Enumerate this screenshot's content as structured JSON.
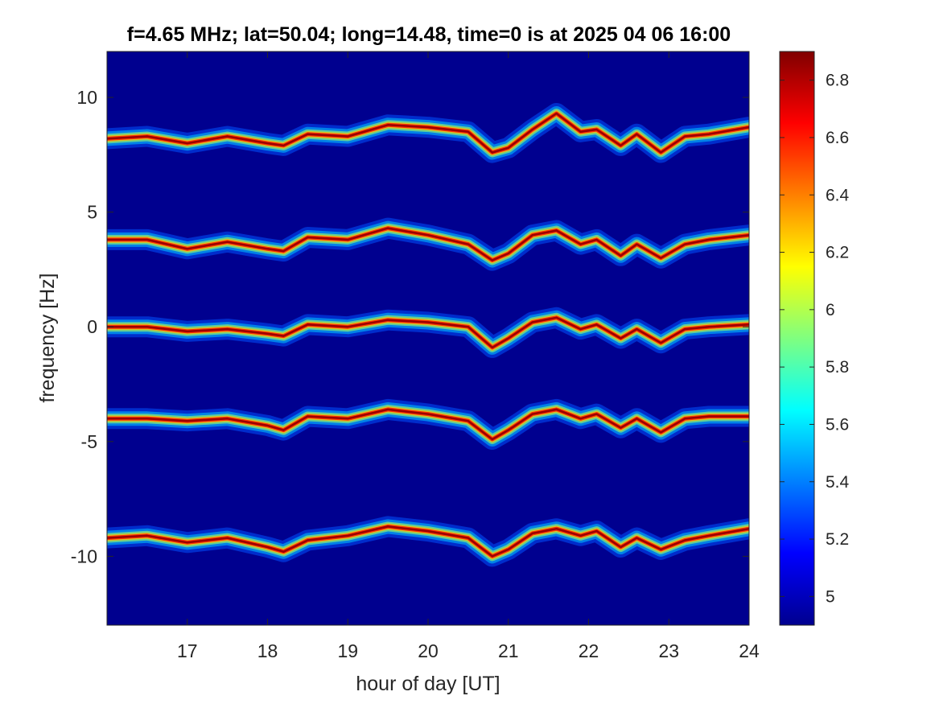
{
  "chart_data": {
    "type": "heatmap",
    "title": "f=4.65 MHz;  lat=50.04; long=14.48, time=0 is at 2025 04 06 16:00",
    "xlabel": "hour of day [UT]",
    "ylabel": "frequency [Hz]",
    "xlim": [
      16.0,
      24.0
    ],
    "ylim": [
      -13.0,
      12.0
    ],
    "xticks": [
      17,
      18,
      19,
      20,
      21,
      22,
      23,
      24
    ],
    "xtick_labels": [
      "17",
      "18",
      "19",
      "20",
      "21",
      "22",
      "23",
      "24"
    ],
    "yticks": [
      10,
      5,
      0,
      -5,
      -10
    ],
    "ytick_labels": [
      "10",
      "5",
      "0",
      "-5",
      "-10"
    ],
    "colorbar": {
      "colormap": "jet",
      "clim": [
        4.9,
        6.9
      ],
      "ticks": [
        6.8,
        6.6,
        6.4,
        6.2,
        6.0,
        5.8,
        5.6,
        5.4,
        5.2,
        5.0
      ],
      "tick_labels": [
        "6.8",
        "6.6",
        "6.4",
        "6.2",
        "6",
        "5.8",
        "5.6",
        "5.4",
        "5.2",
        "5"
      ]
    },
    "background_color": "#00008F",
    "grid": false,
    "traces": [
      {
        "offset": 8.3,
        "points": [
          [
            16.0,
            8.2
          ],
          [
            16.5,
            8.3
          ],
          [
            17.0,
            8.0
          ],
          [
            17.5,
            8.3
          ],
          [
            18.0,
            8.0
          ],
          [
            18.2,
            7.9
          ],
          [
            18.5,
            8.4
          ],
          [
            19.0,
            8.3
          ],
          [
            19.5,
            8.8
          ],
          [
            20.0,
            8.7
          ],
          [
            20.5,
            8.5
          ],
          [
            20.8,
            7.6
          ],
          [
            21.0,
            7.8
          ],
          [
            21.3,
            8.6
          ],
          [
            21.6,
            9.3
          ],
          [
            21.9,
            8.5
          ],
          [
            22.1,
            8.6
          ],
          [
            22.4,
            7.9
          ],
          [
            22.6,
            8.4
          ],
          [
            22.9,
            7.6
          ],
          [
            23.2,
            8.3
          ],
          [
            23.5,
            8.4
          ],
          [
            24.0,
            8.7
          ]
        ]
      },
      {
        "offset": 3.8,
        "points": [
          [
            16.0,
            3.8
          ],
          [
            16.5,
            3.8
          ],
          [
            17.0,
            3.4
          ],
          [
            17.5,
            3.7
          ],
          [
            18.0,
            3.4
          ],
          [
            18.2,
            3.3
          ],
          [
            18.5,
            3.9
          ],
          [
            19.0,
            3.8
          ],
          [
            19.5,
            4.3
          ],
          [
            20.0,
            4.0
          ],
          [
            20.5,
            3.6
          ],
          [
            20.8,
            2.9
          ],
          [
            21.0,
            3.2
          ],
          [
            21.3,
            4.0
          ],
          [
            21.6,
            4.2
          ],
          [
            21.9,
            3.6
          ],
          [
            22.1,
            3.8
          ],
          [
            22.4,
            3.1
          ],
          [
            22.6,
            3.6
          ],
          [
            22.9,
            3.0
          ],
          [
            23.2,
            3.6
          ],
          [
            23.5,
            3.8
          ],
          [
            24.0,
            4.0
          ]
        ]
      },
      {
        "offset": 0.0,
        "points": [
          [
            16.0,
            0.0
          ],
          [
            16.5,
            0.0
          ],
          [
            17.0,
            -0.2
          ],
          [
            17.5,
            -0.1
          ],
          [
            18.0,
            -0.3
          ],
          [
            18.2,
            -0.4
          ],
          [
            18.5,
            0.1
          ],
          [
            19.0,
            0.0
          ],
          [
            19.5,
            0.3
          ],
          [
            20.0,
            0.2
          ],
          [
            20.5,
            0.0
          ],
          [
            20.8,
            -0.9
          ],
          [
            21.0,
            -0.5
          ],
          [
            21.3,
            0.2
          ],
          [
            21.6,
            0.4
          ],
          [
            21.9,
            -0.1
          ],
          [
            22.1,
            0.1
          ],
          [
            22.4,
            -0.5
          ],
          [
            22.6,
            -0.1
          ],
          [
            22.9,
            -0.7
          ],
          [
            23.2,
            -0.1
          ],
          [
            23.5,
            0.0
          ],
          [
            24.0,
            0.1
          ]
        ]
      },
      {
        "offset": -4.0,
        "points": [
          [
            16.0,
            -4.0
          ],
          [
            16.5,
            -4.0
          ],
          [
            17.0,
            -4.1
          ],
          [
            17.5,
            -4.0
          ],
          [
            18.0,
            -4.3
          ],
          [
            18.2,
            -4.5
          ],
          [
            18.5,
            -3.9
          ],
          [
            19.0,
            -4.0
          ],
          [
            19.5,
            -3.6
          ],
          [
            20.0,
            -3.8
          ],
          [
            20.5,
            -4.1
          ],
          [
            20.8,
            -4.9
          ],
          [
            21.0,
            -4.5
          ],
          [
            21.3,
            -3.8
          ],
          [
            21.6,
            -3.6
          ],
          [
            21.9,
            -4.0
          ],
          [
            22.1,
            -3.8
          ],
          [
            22.4,
            -4.4
          ],
          [
            22.6,
            -4.0
          ],
          [
            22.9,
            -4.6
          ],
          [
            23.2,
            -4.0
          ],
          [
            23.5,
            -3.9
          ],
          [
            24.0,
            -3.9
          ]
        ]
      },
      {
        "offset": -9.2,
        "points": [
          [
            16.0,
            -9.2
          ],
          [
            16.5,
            -9.1
          ],
          [
            17.0,
            -9.4
          ],
          [
            17.5,
            -9.2
          ],
          [
            18.0,
            -9.6
          ],
          [
            18.2,
            -9.8
          ],
          [
            18.5,
            -9.3
          ],
          [
            19.0,
            -9.1
          ],
          [
            19.5,
            -8.7
          ],
          [
            20.0,
            -8.9
          ],
          [
            20.5,
            -9.2
          ],
          [
            20.8,
            -10.0
          ],
          [
            21.0,
            -9.7
          ],
          [
            21.3,
            -9.0
          ],
          [
            21.6,
            -8.8
          ],
          [
            21.9,
            -9.1
          ],
          [
            22.1,
            -8.9
          ],
          [
            22.4,
            -9.6
          ],
          [
            22.6,
            -9.2
          ],
          [
            22.9,
            -9.7
          ],
          [
            23.2,
            -9.3
          ],
          [
            23.5,
            -9.1
          ],
          [
            24.0,
            -8.8
          ]
        ]
      }
    ]
  }
}
